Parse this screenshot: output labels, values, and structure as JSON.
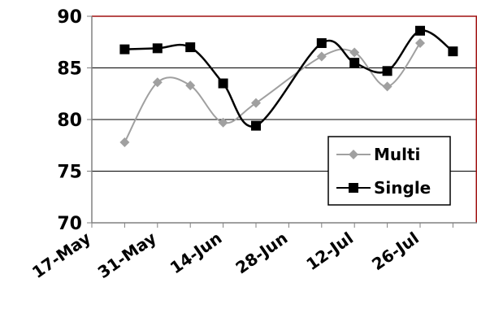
{
  "chart_data": {
    "type": "line",
    "x": [
      "17-May",
      "24-May",
      "31-May",
      "7-Jun",
      "14-Jun",
      "21-Jun",
      "28-Jun",
      "5-Jul",
      "12-Jul",
      "19-Jul",
      "26-Jul",
      "2-Aug"
    ],
    "x_tick_labels": [
      "17-May",
      "31-May",
      "14-Jun",
      "28-Jun",
      "12-Jul",
      "26-Jul"
    ],
    "ylim": [
      70,
      90
    ],
    "y_ticks": [
      70,
      75,
      80,
      85,
      90
    ],
    "grid": true,
    "legend_position": "right",
    "smooth": true,
    "series": [
      {
        "name": "Multi",
        "color": "#a0a0a0",
        "marker": "diamond",
        "values": [
          null,
          77.8,
          83.6,
          83.3,
          79.7,
          81.6,
          null,
          86.1,
          86.5,
          83.2,
          87.4,
          null
        ]
      },
      {
        "name": "Single",
        "color": "#000000",
        "marker": "square",
        "values": [
          null,
          86.8,
          86.9,
          87.0,
          83.5,
          79.4,
          null,
          87.4,
          85.5,
          84.7,
          88.6,
          86.6
        ]
      }
    ],
    "colors": {
      "plot_border": "#a01010",
      "gridline": "#000000",
      "axis": "#808080"
    }
  }
}
